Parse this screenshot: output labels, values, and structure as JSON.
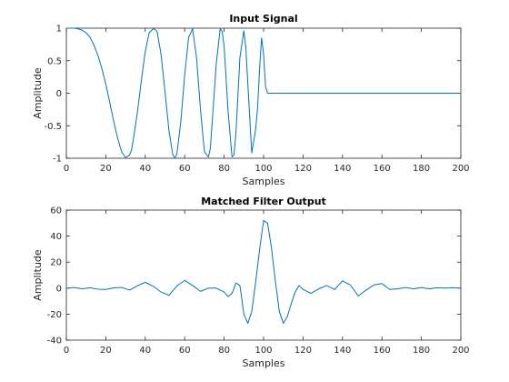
{
  "figure": {
    "background": "#ffffff",
    "line_color": "#0072bd"
  },
  "chart_data": [
    {
      "type": "line",
      "title": "Input Signal",
      "xlabel": "Samples",
      "ylabel": "Amplitude",
      "xlim": [
        0,
        200
      ],
      "ylim": [
        -1,
        1
      ],
      "xticks": [
        0,
        20,
        40,
        60,
        80,
        100,
        120,
        140,
        160,
        180,
        200
      ],
      "yticks": [
        -1,
        -0.5,
        0,
        0.5,
        1
      ],
      "grid": false,
      "series": [
        {
          "x": [
            0,
            2,
            4,
            6,
            8,
            10,
            12,
            14,
            16,
            18,
            20,
            22,
            24,
            26,
            28,
            30,
            32,
            33,
            34,
            36,
            38,
            40,
            42,
            44,
            45,
            46,
            48,
            50,
            52,
            54,
            55,
            56,
            58,
            60,
            62,
            64,
            66,
            68,
            70,
            72,
            73,
            74,
            76,
            78,
            79,
            80,
            82,
            84,
            85,
            86,
            88,
            90,
            91,
            92,
            94,
            96,
            97,
            98,
            99,
            100,
            101,
            102,
            110,
            120,
            130,
            140,
            150,
            160,
            170,
            180,
            190,
            200
          ],
          "y": [
            1,
            1,
            1,
            0.99,
            0.97,
            0.93,
            0.86,
            0.74,
            0.58,
            0.38,
            0.14,
            -0.14,
            -0.43,
            -0.69,
            -0.9,
            -0.99,
            -0.95,
            -0.88,
            -0.7,
            -0.3,
            0.19,
            0.64,
            0.93,
            0.99,
            0.98,
            0.95,
            0.6,
            0.03,
            -0.57,
            -0.95,
            -1,
            -0.94,
            -0.45,
            0.28,
            0.86,
            0.99,
            0.55,
            -0.25,
            -0.9,
            -0.98,
            -0.85,
            -0.42,
            0.45,
            0.99,
            0.95,
            0.72,
            -0.28,
            -0.98,
            -0.95,
            -0.6,
            0.55,
            0.96,
            0.7,
            0.15,
            -0.92,
            -0.55,
            -0.2,
            0.4,
            0.85,
            0.6,
            0.1,
            0,
            0,
            0,
            0,
            0,
            0,
            0,
            0,
            0,
            0,
            0
          ]
        }
      ]
    },
    {
      "type": "line",
      "title": "Matched Filter Output",
      "xlabel": "Samples",
      "ylabel": "Amplitude",
      "xlim": [
        0,
        200
      ],
      "ylim": [
        -40,
        60
      ],
      "xticks": [
        0,
        20,
        40,
        60,
        80,
        100,
        120,
        140,
        160,
        180,
        200
      ],
      "yticks": [
        -40,
        -20,
        0,
        20,
        40,
        60
      ],
      "grid": false,
      "series": [
        {
          "x": [
            0,
            4,
            8,
            12,
            16,
            20,
            24,
            28,
            32,
            36,
            40,
            44,
            48,
            52,
            56,
            60,
            64,
            68,
            72,
            76,
            80,
            82,
            84,
            86,
            88,
            90,
            92,
            94,
            96,
            98,
            100,
            102,
            104,
            106,
            108,
            110,
            112,
            114,
            116,
            118,
            120,
            124,
            128,
            132,
            136,
            140,
            144,
            148,
            152,
            156,
            160,
            164,
            168,
            172,
            176,
            180,
            184,
            188,
            192,
            196,
            200
          ],
          "y": [
            0,
            0.5,
            -0.5,
            0.3,
            -0.8,
            -1,
            0.2,
            0.5,
            -1.5,
            1.8,
            4.5,
            1.5,
            -3,
            -5.5,
            1.5,
            6,
            2,
            -2.5,
            0,
            0,
            -3,
            -6.5,
            -4,
            4,
            2,
            -20,
            -27,
            -18,
            5,
            30,
            52,
            50,
            31,
            5,
            -18,
            -27,
            -22,
            -12,
            -3,
            2,
            -1,
            -4,
            -0.5,
            2,
            -1,
            5.5,
            2.5,
            -6,
            -1.5,
            2.5,
            3.5,
            -1,
            -0.5,
            0.5,
            -0.5,
            0.5,
            -0.5,
            0.3,
            0,
            0.3,
            0
          ]
        }
      ]
    }
  ]
}
